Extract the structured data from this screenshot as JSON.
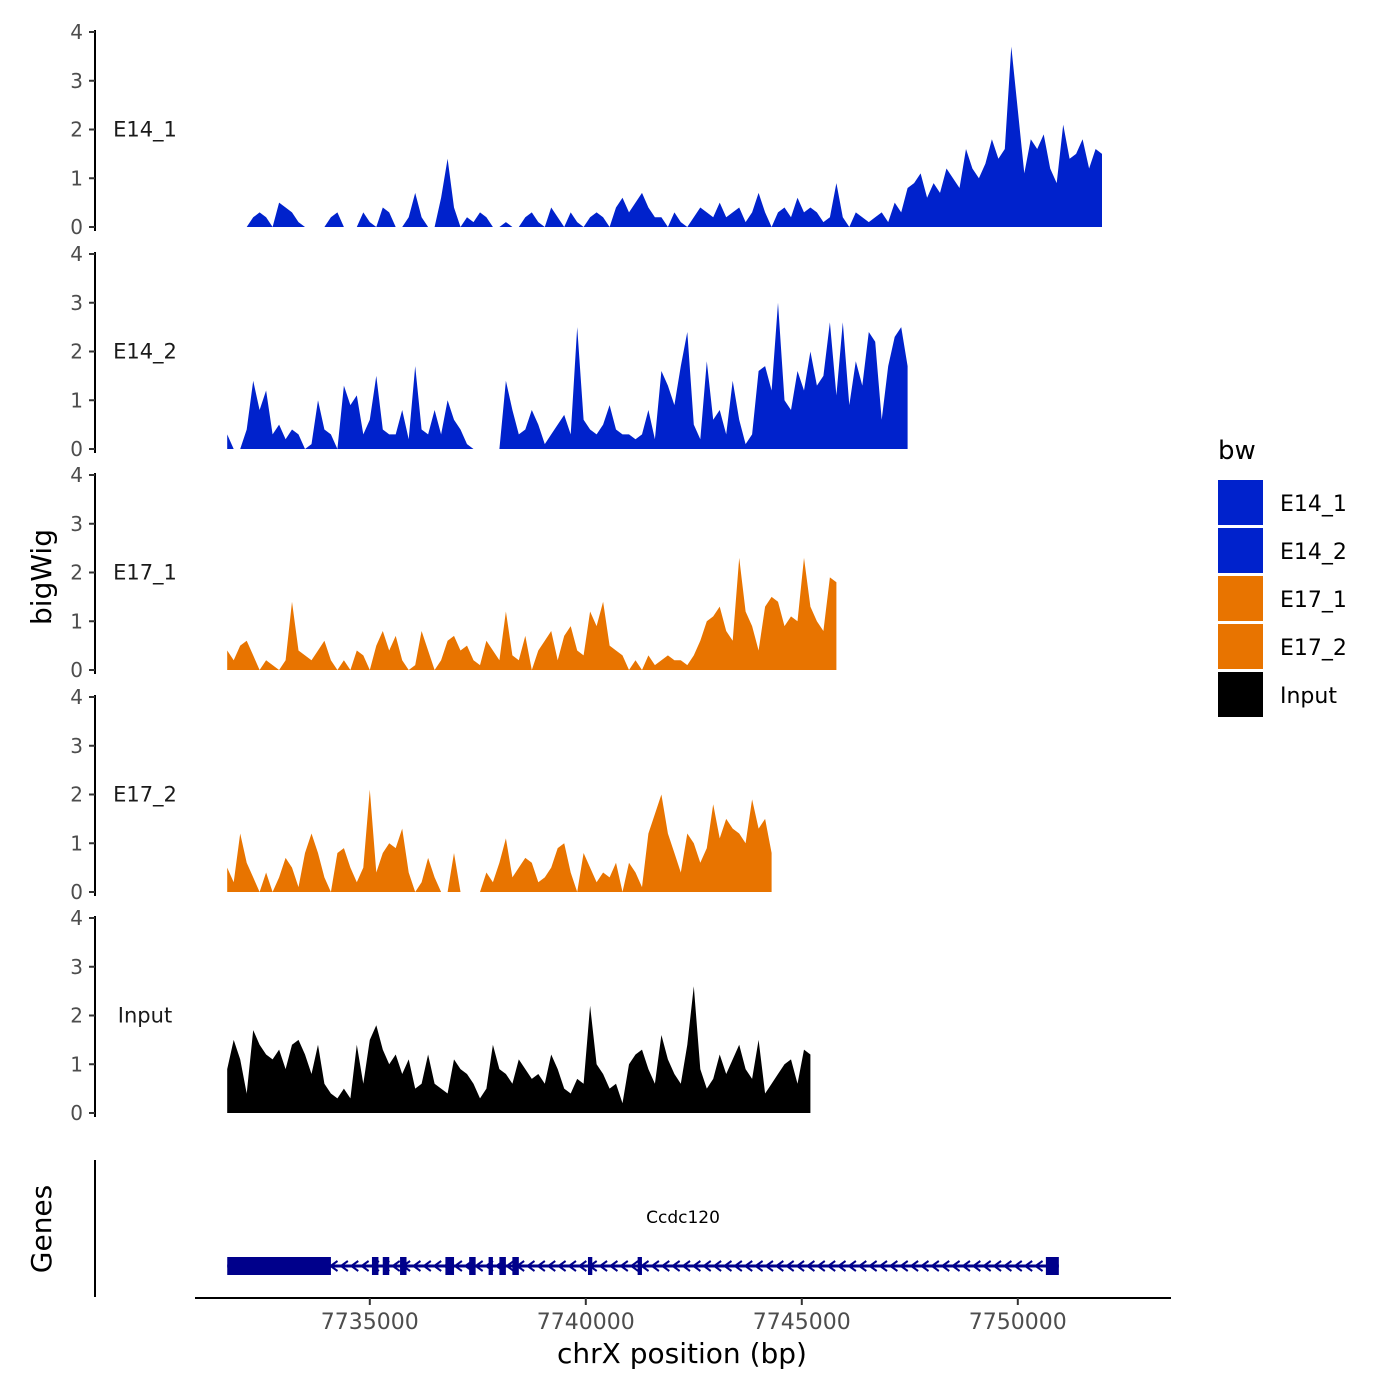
{
  "chart_data": {
    "type": "area",
    "title": "",
    "ylabel": "bigWig",
    "genes_label": "Genes",
    "xlabel": "chrX position (bp)",
    "xlim": [
      7731000,
      7753500
    ],
    "ylim": [
      0,
      4
    ],
    "yticks": [
      "0",
      "1",
      "2",
      "3",
      "4"
    ],
    "xticks": [
      {
        "value": 7735000,
        "label": "7735000"
      },
      {
        "value": 7740000,
        "label": "7740000"
      },
      {
        "value": 7745000,
        "label": "7745000"
      },
      {
        "value": 7750000,
        "label": "7750000"
      }
    ],
    "legend": {
      "title": "bw",
      "position": "right",
      "entries": [
        {
          "label": "E14_1",
          "color": "#0022CC"
        },
        {
          "label": "E14_2",
          "color": "#0022CC"
        },
        {
          "label": "E17_1",
          "color": "#E87400"
        },
        {
          "label": "E17_2",
          "color": "#E87400"
        },
        {
          "label": "Input",
          "color": "#000000"
        }
      ]
    },
    "x_step_bp": 150,
    "x_start_bp": 7731700,
    "series": [
      {
        "name": "E14_1",
        "color": "#0022CC",
        "values": [
          0,
          0,
          0,
          0,
          0.2,
          0.3,
          0.2,
          0,
          0.5,
          0.4,
          0.3,
          0.1,
          0,
          0,
          0,
          0,
          0.2,
          0.3,
          0,
          0,
          0,
          0.3,
          0.1,
          0,
          0.4,
          0.3,
          0,
          0,
          0.2,
          0.7,
          0.2,
          0,
          0,
          0.6,
          1.4,
          0.4,
          0,
          0.2,
          0.1,
          0.3,
          0.2,
          0,
          0,
          0.1,
          0,
          0,
          0.2,
          0.3,
          0.1,
          0,
          0.4,
          0.2,
          0,
          0.3,
          0.1,
          0,
          0.2,
          0.3,
          0.2,
          0,
          0.4,
          0.6,
          0.3,
          0.5,
          0.7,
          0.4,
          0.2,
          0.2,
          0,
          0.3,
          0.1,
          0,
          0.2,
          0.4,
          0.3,
          0.2,
          0.5,
          0.2,
          0.3,
          0.4,
          0.1,
          0.3,
          0.7,
          0.3,
          0,
          0.3,
          0.4,
          0.2,
          0.6,
          0.3,
          0.4,
          0.3,
          0.1,
          0.2,
          0.9,
          0.2,
          0,
          0.3,
          0.2,
          0.1,
          0.2,
          0.3,
          0.1,
          0.5,
          0.3,
          0.8,
          0.9,
          1.1,
          0.6,
          0.9,
          0.7,
          1.2,
          1.0,
          0.8,
          1.6,
          1.2,
          1.0,
          1.3,
          1.8,
          1.4,
          1.6,
          3.7,
          2.4,
          1.1,
          1.8,
          1.6,
          1.9,
          1.2,
          0.9,
          2.1,
          1.4,
          1.5,
          1.8,
          1.2,
          1.6,
          1.5
        ]
      },
      {
        "name": "E14_2",
        "color": "#0022CC",
        "values": [
          0.3,
          0,
          0,
          0.4,
          1.4,
          0.8,
          1.2,
          0.3,
          0.5,
          0.2,
          0.4,
          0.3,
          0,
          0.1,
          1.0,
          0.4,
          0.3,
          0,
          1.3,
          0.9,
          1.1,
          0.3,
          0.6,
          1.5,
          0.4,
          0.3,
          0.3,
          0.8,
          0.2,
          1.7,
          0.4,
          0.3,
          0.8,
          0.3,
          1.0,
          0.6,
          0.4,
          0.1,
          0,
          0,
          0,
          0,
          0,
          1.4,
          0.8,
          0.3,
          0.4,
          0.8,
          0.5,
          0.1,
          0.3,
          0.5,
          0.7,
          0.3,
          2.5,
          0.6,
          0.4,
          0.3,
          0.5,
          0.9,
          0.4,
          0.3,
          0.3,
          0.2,
          0.3,
          0.8,
          0.2,
          1.6,
          1.3,
          0.9,
          1.7,
          2.4,
          0.5,
          0.2,
          1.8,
          0.6,
          0.8,
          0.3,
          1.4,
          0.6,
          0.1,
          0.3,
          1.6,
          1.7,
          1.2,
          3.0,
          1.0,
          0.8,
          1.6,
          1.2,
          2.0,
          1.3,
          1.5,
          2.6,
          1.1,
          2.6,
          0.9,
          1.8,
          1.3,
          2.4,
          2.2,
          0.6,
          1.7,
          2.3,
          2.5,
          1.7
        ]
      },
      {
        "name": "E17_1",
        "color": "#E87400",
        "values": [
          0.4,
          0.2,
          0.5,
          0.6,
          0.3,
          0,
          0.2,
          0.1,
          0,
          0.2,
          1.4,
          0.4,
          0.3,
          0.2,
          0.4,
          0.6,
          0.2,
          0,
          0.2,
          0,
          0.4,
          0.3,
          0,
          0.5,
          0.8,
          0.4,
          0.7,
          0.2,
          0,
          0.1,
          0.8,
          0.4,
          0,
          0.2,
          0.6,
          0.7,
          0.4,
          0.5,
          0.2,
          0.1,
          0.6,
          0.4,
          0.2,
          1.2,
          0.3,
          0.2,
          0.7,
          0,
          0.4,
          0.6,
          0.8,
          0.2,
          0.7,
          0.9,
          0.4,
          0.3,
          1.2,
          0.9,
          1.4,
          0.5,
          0.4,
          0.3,
          0,
          0.2,
          0,
          0.3,
          0.1,
          0.2,
          0.3,
          0.2,
          0.2,
          0.1,
          0.3,
          0.6,
          1.0,
          1.1,
          1.3,
          0.8,
          0.6,
          2.3,
          1.2,
          0.9,
          0.4,
          1.3,
          1.5,
          1.4,
          0.9,
          1.1,
          1.0,
          2.3,
          1.3,
          1.0,
          0.8,
          1.9,
          1.8
        ]
      },
      {
        "name": "E17_2",
        "color": "#E87400",
        "values": [
          0.5,
          0.2,
          1.2,
          0.6,
          0.3,
          0,
          0.4,
          0,
          0.3,
          0.7,
          0.5,
          0.1,
          0.8,
          1.2,
          0.8,
          0.3,
          0,
          0.8,
          0.9,
          0.5,
          0.2,
          0.5,
          2.1,
          0.4,
          0.8,
          1.0,
          0.9,
          1.3,
          0.4,
          0,
          0.2,
          0.7,
          0.3,
          0,
          0,
          0.8,
          0,
          0,
          0,
          0,
          0.4,
          0.2,
          0.6,
          1.1,
          0.3,
          0.5,
          0.7,
          0.6,
          0.2,
          0.3,
          0.5,
          0.9,
          1.0,
          0.4,
          0,
          0.8,
          0.5,
          0.2,
          0.4,
          0.3,
          0.6,
          0,
          0.6,
          0.4,
          0.1,
          1.2,
          1.6,
          2.0,
          1.2,
          0.8,
          0.4,
          1.2,
          1.0,
          0.6,
          0.9,
          1.8,
          1.1,
          1.5,
          1.3,
          1.2,
          1.0,
          1.9,
          1.3,
          1.5,
          0.8
        ]
      },
      {
        "name": "Input",
        "color": "#000000",
        "values": [
          0.9,
          1.5,
          1.1,
          0.4,
          1.7,
          1.4,
          1.2,
          1.1,
          1.3,
          0.9,
          1.4,
          1.5,
          1.2,
          0.8,
          1.4,
          0.6,
          0.4,
          0.3,
          0.5,
          0.3,
          1.4,
          0.6,
          1.5,
          1.8,
          1.3,
          1.0,
          1.2,
          0.8,
          1.1,
          0.5,
          0.6,
          1.2,
          0.6,
          0.5,
          0.4,
          1.1,
          0.9,
          0.8,
          0.6,
          0.3,
          0.5,
          1.4,
          0.9,
          0.8,
          0.6,
          1.1,
          0.9,
          0.7,
          0.8,
          0.6,
          1.2,
          0.9,
          0.5,
          0.4,
          0.7,
          0.6,
          2.2,
          1.0,
          0.8,
          0.5,
          0.6,
          0.2,
          1.0,
          1.2,
          1.3,
          0.9,
          0.6,
          1.6,
          1.1,
          0.8,
          0.6,
          1.4,
          2.6,
          0.9,
          0.5,
          0.7,
          1.2,
          0.8,
          1.1,
          1.4,
          0.9,
          0.7,
          1.5,
          0.4,
          0.6,
          0.8,
          1.0,
          1.1,
          0.6,
          1.3,
          1.2
        ]
      }
    ],
    "gene": {
      "name": "Ccdc120",
      "strand": "-",
      "start": 7731700,
      "end": 7750950,
      "color": "#00008B",
      "exons": [
        [
          7731700,
          7734100
        ],
        [
          7735050,
          7735200
        ],
        [
          7735300,
          7735450
        ],
        [
          7735700,
          7735850
        ],
        [
          7736750,
          7736950
        ],
        [
          7737300,
          7737450
        ],
        [
          7737750,
          7737850
        ],
        [
          7738000,
          7738150
        ],
        [
          7738300,
          7738450
        ],
        [
          7740050,
          7740150
        ],
        [
          7741200,
          7741300
        ],
        [
          7750650,
          7750950
        ]
      ]
    }
  }
}
